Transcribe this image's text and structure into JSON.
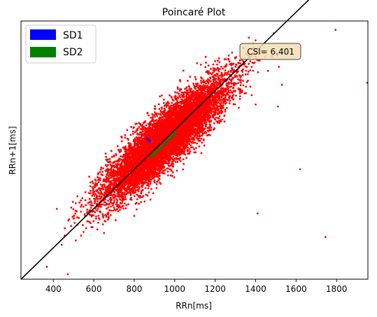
{
  "chart_data": {
    "type": "scatter",
    "title": "Poincaré Plot",
    "xlabel": "RRn[ms]",
    "ylabel": "RRn+1[ms]",
    "xlim": [
      240,
      1955
    ],
    "ylim": [
      240,
      1555
    ],
    "x_ticks": [
      400,
      600,
      800,
      1000,
      1200,
      1400,
      1600,
      1800
    ],
    "x_tick_labels": [
      "400",
      "600",
      "800",
      "1000",
      "1200",
      "1400",
      "1600",
      "1800"
    ],
    "y_ticks_visible": false,
    "grid": false,
    "legend": {
      "placement": "top-left",
      "entries": [
        {
          "label": "SD1",
          "color": "#0000ff"
        },
        {
          "label": "SD2",
          "color": "#008000"
        }
      ]
    },
    "annotation": {
      "text": "CSI= 6.401",
      "placement": "top-right",
      "box_color": "#f5deb3"
    },
    "identity_line": {
      "from": [
        240,
        240
      ],
      "to": [
        1955,
        1955
      ],
      "color": "#000000"
    },
    "sd1_segment": {
      "from": [
        860,
        960
      ],
      "to": [
        880,
        940
      ],
      "color": "#0000ff"
    },
    "sd2_segment": {
      "from": [
        880,
        860
      ],
      "to": [
        1010,
        990
      ],
      "color": "#008000"
    },
    "point_color": "#ff0000",
    "cloud": {
      "center": [
        950,
        950
      ],
      "along_diagonal_sd": 210,
      "across_diagonal_sd": 52,
      "x_range": [
        260,
        1525
      ],
      "count": 9000
    },
    "outliers": [
      [
        1795,
        1510
      ],
      [
        1955,
        1240
      ],
      [
        1480,
        1375
      ],
      [
        1110,
        1340
      ],
      [
        1200,
        1240
      ],
      [
        1160,
        1300
      ],
      [
        1400,
        1130
      ],
      [
        1745,
        455
      ],
      [
        1530,
        1230
      ],
      [
        1620,
        800
      ],
      [
        1410,
        575
      ],
      [
        1510,
        1120
      ]
    ]
  }
}
